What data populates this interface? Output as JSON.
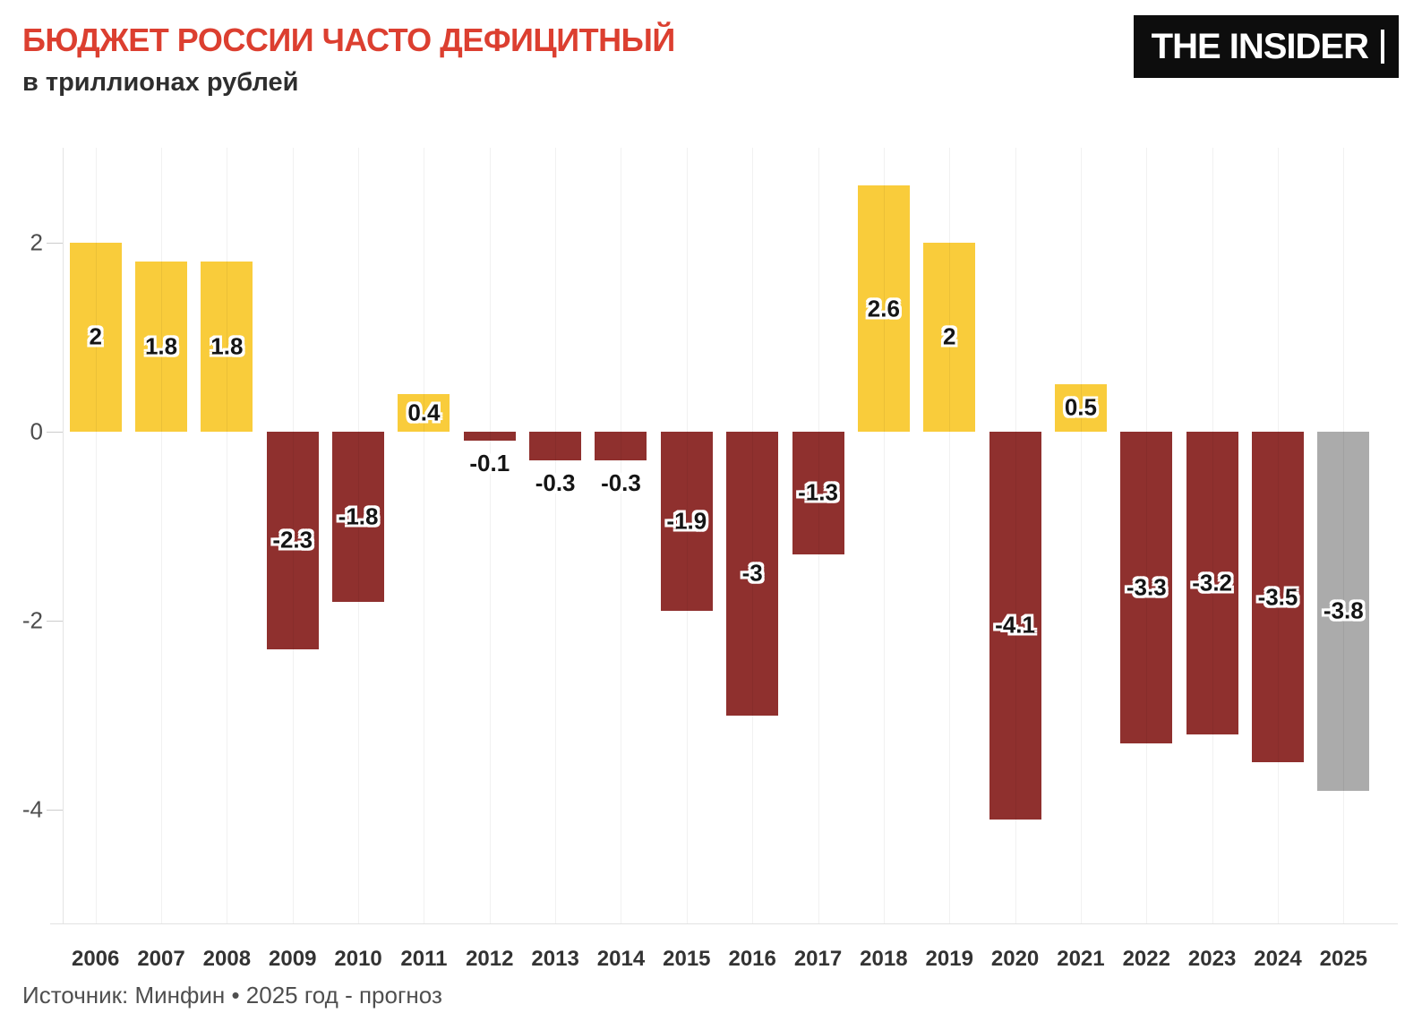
{
  "header": {
    "title": "БЮДЖЕТ РОССИИ ЧАСТО ДЕФИЦИТНЫЙ",
    "subtitle": "в триллионах рублей",
    "logo_text": "THE INSIDER"
  },
  "footer": {
    "source": "Источник: Минфин • 2025 год - прогноз"
  },
  "colors": {
    "title": "#dc3f30",
    "surplus": "#f9cc3b",
    "deficit": "#8f302e",
    "forecast": "#ababab",
    "label_text": "#151515",
    "label_outline": "#ffffff",
    "axis_text": "#4d4d4d",
    "x_axis_text": "#333333",
    "grid": "#e4e4e4",
    "logo_bg": "#0d0d0d",
    "logo_text": "#ffffff"
  },
  "chart_data": {
    "type": "bar",
    "title": "БЮДЖЕТ РОССИИ ЧАСТО ДЕФИЦИТНЫЙ",
    "subtitle": "в триллионах рублей",
    "xlabel": "",
    "ylabel": "триллионы рублей",
    "categories": [
      "2006",
      "2007",
      "2008",
      "2009",
      "2010",
      "2011",
      "2012",
      "2013",
      "2014",
      "2015",
      "2016",
      "2017",
      "2018",
      "2019",
      "2020",
      "2021",
      "2022",
      "2023",
      "2024",
      "2025"
    ],
    "values": [
      2,
      1.8,
      1.8,
      -2.3,
      -1.8,
      0.4,
      -0.1,
      -0.3,
      -0.3,
      -1.9,
      -3,
      -1.3,
      2.6,
      2,
      -4.1,
      0.5,
      -3.3,
      -3.2,
      -3.5,
      -3.8
    ],
    "labels": [
      "2",
      "1.8",
      "1.8",
      "-2.3",
      "-1.8",
      "0.4",
      "-0.1",
      "-0.3",
      "-0.3",
      "-1.9",
      "-3",
      "-1.3",
      "2.6",
      "2",
      "-4.1",
      "0.5",
      "-3.3",
      "-3.2",
      "-3.5",
      "-3.8"
    ],
    "roles": [
      "surplus",
      "surplus",
      "surplus",
      "deficit",
      "deficit",
      "surplus",
      "deficit",
      "deficit",
      "deficit",
      "deficit",
      "deficit",
      "deficit",
      "surplus",
      "surplus",
      "deficit",
      "surplus",
      "deficit",
      "deficit",
      "deficit",
      "forecast"
    ],
    "label_pos": [
      "inside",
      "inside",
      "inside",
      "inside",
      "inside",
      "inside",
      "below",
      "below",
      "below",
      "inside",
      "inside",
      "inside",
      "inside",
      "inside",
      "inside",
      "inside",
      "inside",
      "inside",
      "inside",
      "inside"
    ],
    "yticks": [
      2,
      0,
      -2,
      -4
    ],
    "ytick_labels": [
      "2",
      "0",
      "-2",
      "-4"
    ],
    "ylim": [
      -5.2,
      3.0
    ],
    "grid": "vertical-at-category-centers",
    "legend": "none",
    "forecast_category": "2025"
  }
}
